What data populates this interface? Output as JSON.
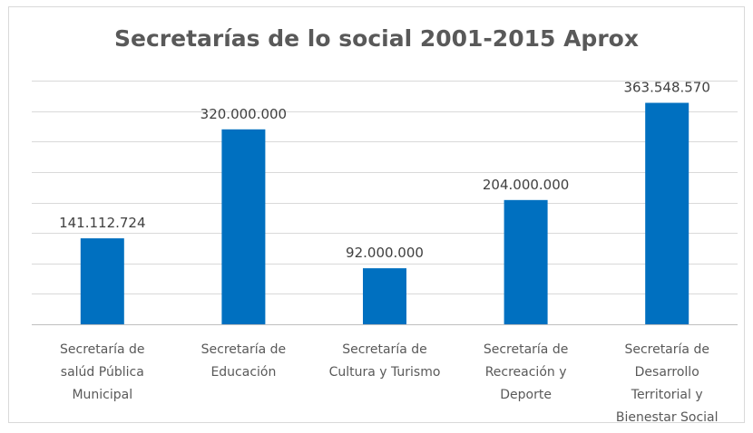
{
  "chart_data": {
    "type": "bar",
    "title": "Secretarías de lo social 2001-2015 Aprox",
    "categories": [
      [
        "Secretaría de",
        "salúd Pública",
        "Municipal"
      ],
      [
        "Secretaría de",
        "Educación"
      ],
      [
        "Secretaría de",
        "Cultura y Turismo"
      ],
      [
        "Secretaría de",
        "Recreación y",
        "Deporte"
      ],
      [
        "Secretaría de",
        "Desarrollo",
        "Territorial y",
        "Bienestar Social"
      ]
    ],
    "values": [
      141112724,
      320000000,
      92000000,
      204000000,
      363548570
    ],
    "data_labels": [
      "141.112.724",
      "320.000.000",
      "92.000.000",
      "204.000.000",
      "363.548.570"
    ],
    "ylim": [
      0,
      400000000
    ],
    "gridlines": true,
    "axis_labels_visible": false,
    "bar_color": "#0070C0"
  }
}
